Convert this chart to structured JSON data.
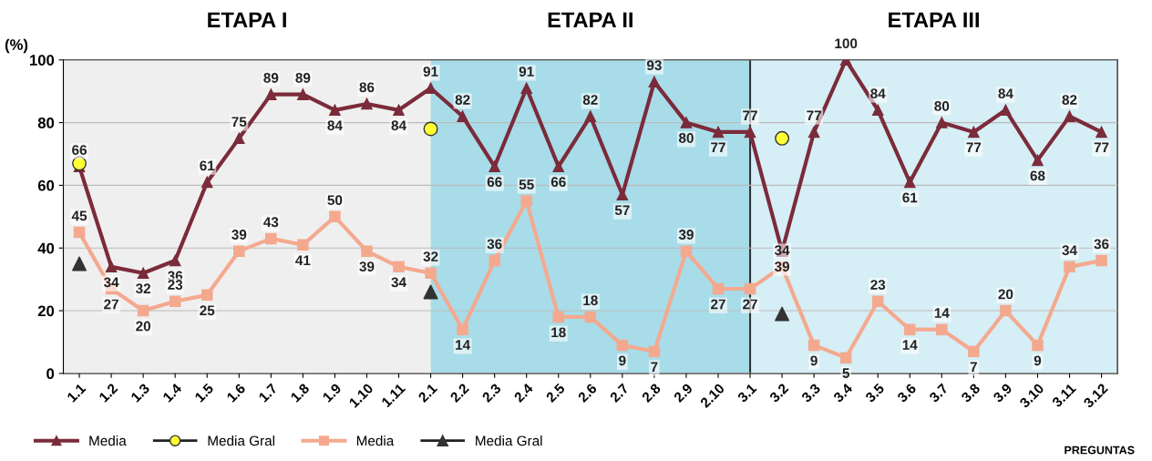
{
  "chart_data": {
    "type": "line",
    "ylabel": "(%)",
    "xlabel": "PREGUNTAS",
    "categories": [
      "1.1",
      "1.2",
      "1.3",
      "1.4",
      "1.5",
      "1.6",
      "1.7",
      "1.8",
      "1.9",
      "1.10",
      "1.11",
      "2.1",
      "2.2",
      "2.3",
      "2.4",
      "2.5",
      "2.6",
      "2.7",
      "2.8",
      "2.9",
      "2.10",
      "3.1",
      "3.2",
      "3.3",
      "3.4",
      "3.5",
      "3.6",
      "3.7",
      "3.8",
      "3.9",
      "3.10",
      "3.11",
      "3.12"
    ],
    "series": [
      {
        "name": "Media",
        "type": "line",
        "marker": "triangle",
        "color": "#7b2b3a",
        "values": [
          66,
          34,
          32,
          36,
          61,
          75,
          89,
          89,
          84,
          86,
          84,
          91,
          82,
          66,
          91,
          66,
          82,
          57,
          93,
          80,
          77,
          77,
          39,
          77,
          100,
          84,
          61,
          80,
          77,
          84,
          68,
          82,
          77
        ],
        "data_labels": true
      },
      {
        "name": "Media Gral",
        "type": "scatter",
        "marker": "circle",
        "color": "#ffff33",
        "x": [
          "1.1",
          "2.1",
          "3.2"
        ],
        "values": [
          67,
          78,
          75
        ]
      },
      {
        "name": "Media",
        "type": "line",
        "marker": "square",
        "color": "#f4a98f",
        "values": [
          45,
          27,
          20,
          23,
          25,
          39,
          43,
          41,
          50,
          39,
          34,
          32,
          14,
          36,
          55,
          18,
          18,
          9,
          7,
          39,
          27,
          27,
          34,
          9,
          5,
          23,
          14,
          14,
          7,
          20,
          9,
          34,
          36
        ],
        "data_labels": true
      },
      {
        "name": "Media Gral",
        "type": "scatter",
        "marker": "triangle",
        "color": "#333333",
        "x": [
          "1.1",
          "2.1",
          "3.2"
        ],
        "values": [
          35,
          26,
          19
        ]
      }
    ],
    "bands": [
      {
        "axis": "x",
        "from": "1.1",
        "to": "2.1",
        "label": "ETAPA I",
        "color": "#efefef"
      },
      {
        "axis": "x",
        "from": "2.1",
        "to": "3.1",
        "label": "ETAPA II",
        "color": "#a8dce9"
      },
      {
        "axis": "x",
        "from": "3.1",
        "to": "3.12",
        "label": "ETAPA III",
        "color": "#d6eef5"
      }
    ],
    "ref_lines": [
      {
        "axis": "x",
        "value": "3.1",
        "color": "#333333",
        "line_style": "solid"
      }
    ],
    "ylim": [
      0,
      100
    ],
    "yticks": [
      0,
      20,
      40,
      60,
      80,
      100
    ],
    "grid": "y",
    "legend": "bottom"
  }
}
